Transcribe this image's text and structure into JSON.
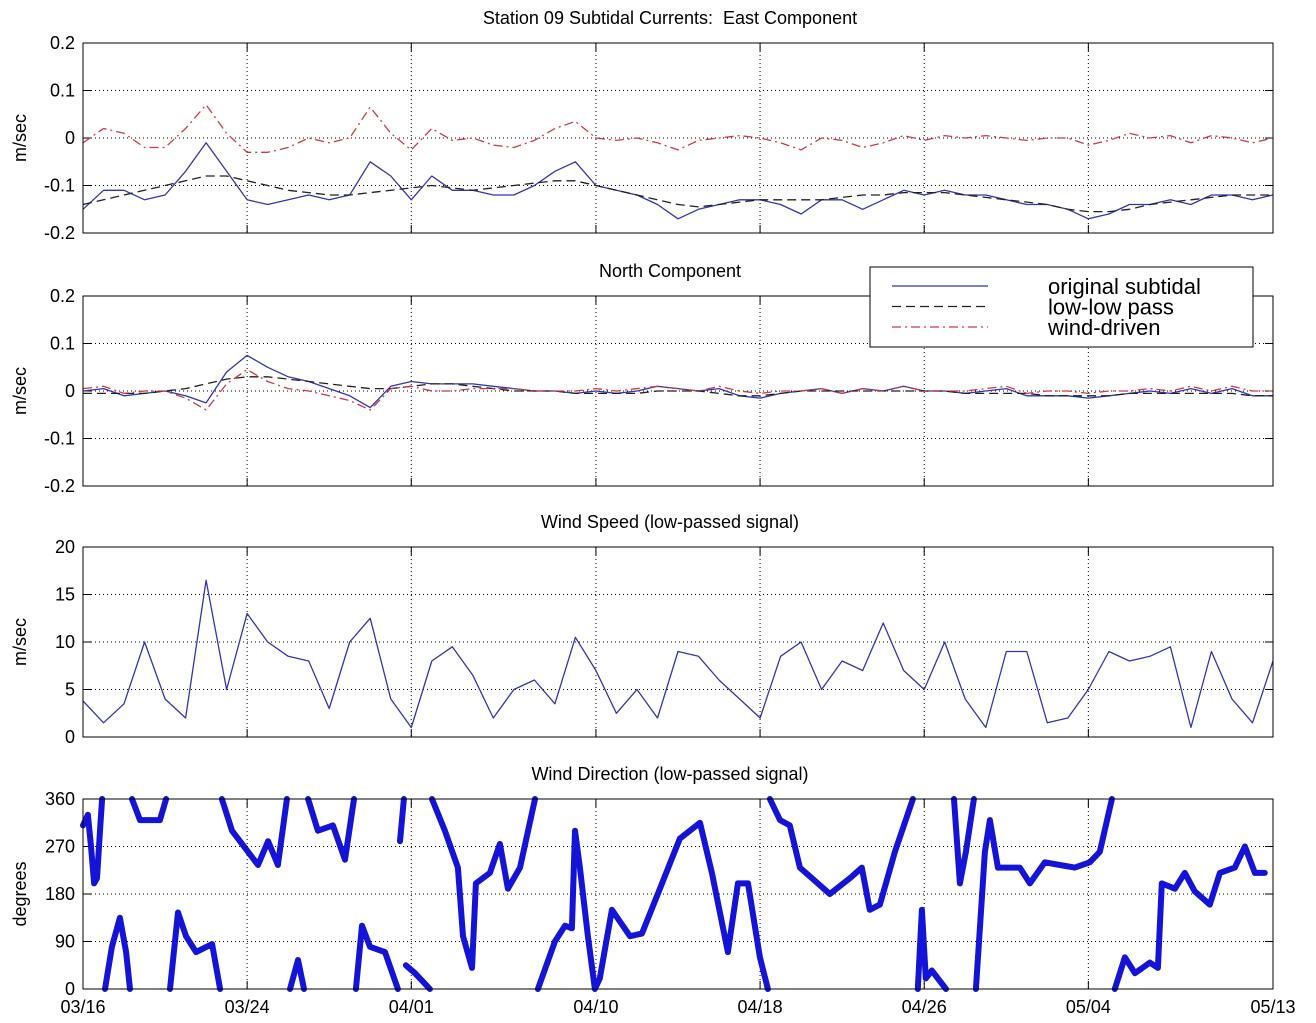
{
  "chart_data": [
    {
      "type": "line",
      "title": "Station 09 Subtidal Currents:  East Component",
      "ylabel": "m/sec",
      "x": [
        0,
        1,
        2,
        3,
        4,
        5,
        6,
        7,
        8,
        9,
        10,
        11,
        12,
        13,
        14,
        15,
        16,
        17,
        18,
        19,
        20,
        21,
        22,
        23,
        24,
        25,
        26,
        27,
        28,
        29,
        30,
        31,
        32,
        33,
        34,
        35,
        36,
        37,
        38,
        39,
        40,
        41,
        42,
        43,
        44,
        45,
        46,
        47,
        48,
        49,
        50,
        51,
        52,
        53,
        54,
        55,
        56,
        57,
        58
      ],
      "xlim": [
        0,
        58
      ],
      "xticks": [
        0,
        8,
        16,
        25,
        33,
        41,
        49,
        58
      ],
      "xtick_labels": false,
      "ylim": [
        -0.2,
        0.2
      ],
      "yticks": [
        -0.2,
        -0.1,
        0,
        0.1,
        0.2
      ],
      "grid": true,
      "series": [
        {
          "color": "#3535b0",
          "linestyle": "solid",
          "line_width": 1.3,
          "values": [
            -0.15,
            -0.11,
            -0.11,
            -0.13,
            -0.12,
            -0.07,
            -0.01,
            -0.07,
            -0.13,
            -0.14,
            -0.13,
            -0.12,
            -0.13,
            -0.12,
            -0.05,
            -0.08,
            -0.13,
            -0.08,
            -0.11,
            -0.11,
            -0.12,
            -0.12,
            -0.1,
            -0.07,
            -0.05,
            -0.1,
            -0.11,
            -0.12,
            -0.14,
            -0.17,
            -0.15,
            -0.14,
            -0.13,
            -0.13,
            -0.14,
            -0.16,
            -0.13,
            -0.13,
            -0.15,
            -0.13,
            -0.11,
            -0.12,
            -0.11,
            -0.12,
            -0.12,
            -0.13,
            -0.14,
            -0.14,
            -0.15,
            -0.17,
            -0.16,
            -0.14,
            -0.14,
            -0.13,
            -0.14,
            -0.12,
            -0.12,
            -0.13,
            -0.12
          ]
        },
        {
          "color": "#222222",
          "linestyle": "dashed",
          "line_width": 1.3,
          "values": [
            -0.14,
            -0.13,
            -0.12,
            -0.11,
            -0.1,
            -0.09,
            -0.08,
            -0.08,
            -0.09,
            -0.1,
            -0.11,
            -0.115,
            -0.12,
            -0.12,
            -0.115,
            -0.11,
            -0.105,
            -0.1,
            -0.105,
            -0.11,
            -0.105,
            -0.1,
            -0.095,
            -0.09,
            -0.09,
            -0.1,
            -0.11,
            -0.12,
            -0.13,
            -0.14,
            -0.145,
            -0.14,
            -0.135,
            -0.13,
            -0.13,
            -0.13,
            -0.13,
            -0.125,
            -0.12,
            -0.12,
            -0.115,
            -0.115,
            -0.115,
            -0.12,
            -0.125,
            -0.13,
            -0.135,
            -0.14,
            -0.15,
            -0.155,
            -0.155,
            -0.15,
            -0.14,
            -0.135,
            -0.13,
            -0.125,
            -0.12,
            -0.12,
            -0.12
          ]
        },
        {
          "color": "#cc3a4a",
          "linestyle": "dashdot",
          "line_width": 1.3,
          "values": [
            -0.01,
            0.02,
            0.01,
            -0.02,
            -0.02,
            0.02,
            0.07,
            0.01,
            -0.03,
            -0.03,
            -0.02,
            0,
            -0.01,
            0,
            0.065,
            0.01,
            -0.025,
            0.02,
            -0.005,
            0,
            -0.015,
            -0.02,
            -0.005,
            0.02,
            0.035,
            0,
            -0.005,
            0,
            -0.01,
            -0.025,
            -0.005,
            0,
            0.005,
            0,
            -0.01,
            -0.025,
            0,
            -0.005,
            -0.02,
            -0.01,
            0.005,
            -0.005,
            0.005,
            0,
            0.005,
            0,
            -0.005,
            0,
            0,
            -0.015,
            -0.005,
            0.01,
            0,
            0.005,
            -0.01,
            0.005,
            0,
            -0.01,
            0
          ]
        }
      ]
    },
    {
      "type": "line",
      "title": "North Component",
      "ylabel": "m/sec",
      "legend": "top-right",
      "x": [
        0,
        1,
        2,
        3,
        4,
        5,
        6,
        7,
        8,
        9,
        10,
        11,
        12,
        13,
        14,
        15,
        16,
        17,
        18,
        19,
        20,
        21,
        22,
        23,
        24,
        25,
        26,
        27,
        28,
        29,
        30,
        31,
        32,
        33,
        34,
        35,
        36,
        37,
        38,
        39,
        40,
        41,
        42,
        43,
        44,
        45,
        46,
        47,
        48,
        49,
        50,
        51,
        52,
        53,
        54,
        55,
        56,
        57,
        58
      ],
      "xlim": [
        0,
        58
      ],
      "xticks": [
        0,
        8,
        16,
        25,
        33,
        41,
        49,
        58
      ],
      "xtick_labels": false,
      "ylim": [
        -0.2,
        0.2
      ],
      "yticks": [
        -0.2,
        -0.1,
        0,
        0.1,
        0.2
      ],
      "grid": true,
      "series": [
        {
          "name": "original subtidal",
          "color": "#3535b0",
          "linestyle": "solid",
          "line_width": 1.3,
          "values": [
            0,
            0.005,
            -0.01,
            -0.005,
            0,
            -0.01,
            -0.025,
            0.04,
            0.075,
            0.05,
            0.03,
            0.02,
            0.005,
            -0.01,
            -0.035,
            0.01,
            0.02,
            0.015,
            0.015,
            0.015,
            0.01,
            0.005,
            0,
            0,
            -0.005,
            0,
            -0.005,
            0,
            0.01,
            0.005,
            0,
            0.005,
            -0.01,
            -0.015,
            -0.005,
            0,
            0.005,
            -0.005,
            0.005,
            0,
            0.01,
            0,
            0,
            -0.005,
            0,
            0.005,
            -0.01,
            -0.01,
            -0.01,
            -0.015,
            -0.01,
            -0.005,
            0,
            -0.005,
            0.005,
            -0.005,
            0.005,
            -0.01,
            -0.01
          ]
        },
        {
          "name": "low-low pass",
          "color": "#222222",
          "linestyle": "dashed",
          "line_width": 1.3,
          "values": [
            -0.005,
            -0.005,
            -0.005,
            -0.005,
            0,
            0.005,
            0.015,
            0.025,
            0.03,
            0.03,
            0.025,
            0.02,
            0.015,
            0.01,
            0.005,
            0.005,
            0.01,
            0.015,
            0.015,
            0.01,
            0.005,
            0,
            0,
            0,
            -0.005,
            -0.005,
            -0.005,
            -0.005,
            0,
            0,
            0,
            -0.005,
            -0.01,
            -0.01,
            -0.005,
            0,
            0,
            0,
            0,
            0,
            0,
            0,
            0,
            -0.005,
            -0.005,
            -0.005,
            -0.005,
            -0.01,
            -0.01,
            -0.01,
            -0.01,
            -0.005,
            -0.005,
            -0.005,
            -0.005,
            -0.005,
            -0.005,
            -0.01,
            -0.01
          ]
        },
        {
          "name": "wind-driven",
          "color": "#cc3a4a",
          "linestyle": "dashdot",
          "line_width": 1.3,
          "values": [
            0.005,
            0.01,
            -0.005,
            0,
            0,
            -0.015,
            -0.04,
            0.015,
            0.045,
            0.02,
            0.005,
            0,
            -0.01,
            -0.02,
            -0.04,
            0.005,
            0.01,
            0,
            0,
            0.005,
            0.005,
            0.005,
            0,
            0,
            0,
            0.005,
            0,
            0.005,
            0.01,
            0.005,
            0,
            0.01,
            0,
            -0.005,
            0,
            0,
            0.005,
            -0.005,
            0.005,
            0,
            0.01,
            0,
            0,
            0,
            0.005,
            0.01,
            -0.005,
            0,
            0,
            -0.005,
            0,
            0,
            0.005,
            0,
            0.01,
            0,
            0.01,
            0,
            0
          ]
        }
      ]
    },
    {
      "type": "line",
      "title": "Wind Speed (low-passed signal)",
      "ylabel": "m/sec",
      "x": [
        0,
        1,
        2,
        3,
        4,
        5,
        6,
        7,
        8,
        9,
        10,
        11,
        12,
        13,
        14,
        15,
        16,
        17,
        18,
        19,
        20,
        21,
        22,
        23,
        24,
        25,
        26,
        27,
        28,
        29,
        30,
        31,
        32,
        33,
        34,
        35,
        36,
        37,
        38,
        39,
        40,
        41,
        42,
        43,
        44,
        45,
        46,
        47,
        48,
        49,
        50,
        51,
        52,
        53,
        54,
        55,
        56,
        57,
        58
      ],
      "xlim": [
        0,
        58
      ],
      "xticks": [
        0,
        8,
        16,
        25,
        33,
        41,
        49,
        58
      ],
      "xtick_labels": false,
      "ylim": [
        0,
        20
      ],
      "yticks": [
        0,
        5,
        10,
        15,
        20
      ],
      "grid": true,
      "series": [
        {
          "color": "#3535b0",
          "linestyle": "solid",
          "line_width": 1.3,
          "values": [
            3.8,
            1.5,
            3.5,
            10,
            4,
            2,
            16.5,
            5,
            13,
            10,
            8.5,
            8,
            3,
            10,
            12.5,
            4,
            1,
            8,
            9.5,
            6.5,
            2,
            5,
            6,
            3.5,
            10.5,
            7,
            2.5,
            5,
            2,
            9,
            8.5,
            6,
            4,
            2,
            8.5,
            10,
            5,
            8,
            7,
            12,
            7,
            5,
            10,
            4,
            1,
            9,
            9,
            1.5,
            2,
            5,
            9,
            8,
            8.5,
            9.5,
            1,
            9,
            4,
            1.5,
            8
          ]
        }
      ]
    },
    {
      "type": "line",
      "title": "Wind Direction (low-passed signal)",
      "ylabel": "degrees",
      "x": [
        0,
        0.24,
        0.39,
        0.54,
        0.68,
        0.83,
        0.93,
        null,
        1.07,
        1.41,
        1.8,
        2.1,
        2.29,
        null,
        2.39,
        2.78,
        3.75,
        4.05,
        null,
        4.24,
        4.63,
        5.02,
        5.51,
        6.29,
        6.68,
        null,
        6.77,
        7.26,
        8.04,
        8.53,
        9.02,
        9.5,
        9.94,
        null,
        10.09,
        10.48,
        10.77,
        null,
        10.97,
        11.45,
        12.18,
        12.77,
        13.21,
        null,
        13.3,
        13.6,
        13.99,
        14.72,
        15.35,
        null,
        15.45,
        15.64,
        null,
        15.74,
        16.18,
        16.91,
        null,
        17.01,
        17.64,
        18.27,
        18.52,
        18.96,
        19.15,
        19.83,
        20.32,
        20.71,
        21.3,
        22.03,
        null,
        22.17,
        23.0,
        23.49,
        23.83,
        23.98,
        24.22,
        24.61,
        24.95,
        25.19,
        25.78,
        26.66,
        27.24,
        28.12,
        29.09,
        30.07,
        30.65,
        31.43,
        31.92,
        32.41,
        32.99,
        33.38,
        null,
        33.48,
        33.97,
        34.45,
        34.94,
        35.53,
        36.4,
        37.38,
        37.96,
        38.35,
        38.84,
        39.57,
        40.45,
        null,
        40.69,
        40.89,
        41.08,
        41.37,
        42.06,
        null,
        42.45,
        42.74,
        43.03,
        43.42,
        null,
        43.52,
        43.96,
        44.2,
        44.59,
        45.66,
        46.15,
        46.88,
        47.61,
        48.34,
        49.07,
        49.56,
        50.15,
        null,
        50.29,
        50.78,
        51.27,
        52.0,
        52.39,
        52.58,
        53.22,
        53.7,
        54.19,
        54.92,
        55.41,
        56.14,
        56.63,
        57.12,
        57.6
      ],
      "xlim": [
        0,
        58
      ],
      "xticks": [
        {
          "value": 0,
          "label": "03/16"
        },
        {
          "value": 8,
          "label": "03/24"
        },
        {
          "value": 16,
          "label": "04/01"
        },
        {
          "value": 25,
          "label": "04/10"
        },
        {
          "value": 33,
          "label": "04/18"
        },
        {
          "value": 41,
          "label": "04/26"
        },
        {
          "value": 49,
          "label": "05/04"
        },
        {
          "value": 58,
          "label": "05/13"
        }
      ],
      "xtick_labels": true,
      "ylim": [
        0,
        360
      ],
      "yticks": [
        0,
        90,
        180,
        270,
        360
      ],
      "grid": true,
      "series": [
        {
          "color": "#1414d8",
          "linestyle": "dotted",
          "line_width": 6,
          "values": [
            310,
            330,
            270,
            200,
            210,
            300,
            360,
            null,
            0,
            80,
            135,
            70,
            0,
            null,
            360,
            320,
            320,
            360,
            null,
            0,
            145,
            100,
            70,
            85,
            0,
            null,
            360,
            300,
            260,
            235,
            280,
            235,
            360,
            null,
            0,
            55,
            0,
            null,
            360,
            300,
            310,
            245,
            360,
            null,
            0,
            120,
            80,
            70,
            0,
            null,
            280,
            360,
            null,
            45,
            30,
            0,
            null,
            360,
            300,
            230,
            100,
            40,
            200,
            220,
            275,
            190,
            230,
            360,
            null,
            0,
            90,
            120,
            115,
            300,
            230,
            100,
            0,
            20,
            150,
            100,
            105,
            190,
            285,
            315,
            220,
            70,
            200,
            200,
            60,
            0,
            null,
            360,
            320,
            310,
            230,
            210,
            180,
            210,
            230,
            150,
            160,
            260,
            360,
            null,
            0,
            150,
            20,
            35,
            0,
            null,
            360,
            200,
            260,
            360,
            null,
            0,
            260,
            320,
            230,
            230,
            200,
            240,
            235,
            230,
            240,
            260,
            360,
            null,
            0,
            60,
            30,
            50,
            40,
            200,
            190,
            220,
            185,
            160,
            220,
            230,
            270,
            220,
            220
          ]
        }
      ]
    }
  ]
}
